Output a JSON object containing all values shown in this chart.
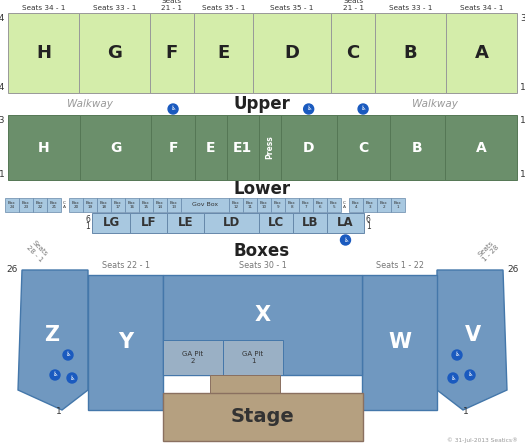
{
  "bg_color": "#ffffff",
  "upper_color": "#d4edaa",
  "lower_color": "#6b8f6b",
  "box_color": "#a8c8e0",
  "stage_color": "#b5a080",
  "floor_color": "#7098c0",
  "pit_color": "#9ab8d0",
  "wheelchair_color": "#1a5abf",
  "upper_sections": [
    "H",
    "G",
    "F",
    "E",
    "D",
    "C",
    "B",
    "A"
  ],
  "upper_seat_labels": [
    "Seats 34 - 1",
    "Seats 33 - 1",
    "Seats\n21 - 1",
    "Seats 35 - 1",
    "Seats 35 - 1",
    "Seats\n21 - 1",
    "Seats 33 - 1",
    "Seats 34 - 1"
  ],
  "upper_widths_rel": [
    1.38,
    1.38,
    0.85,
    1.15,
    1.52,
    0.85,
    1.38,
    1.38
  ],
  "lower_sections": [
    "H",
    "G",
    "F",
    "E",
    "E1",
    "Press",
    "D",
    "C",
    "B",
    "A"
  ],
  "lower_widths_rel": [
    1.35,
    1.35,
    0.82,
    0.6,
    0.6,
    0.42,
    1.05,
    1.0,
    1.05,
    1.35
  ],
  "lettered_boxes": [
    "LG",
    "LF",
    "LE",
    "LD",
    "LC",
    "LB",
    "LA"
  ],
  "lettered_box_widths": [
    38,
    37,
    37,
    55,
    34,
    34,
    37
  ],
  "small_boxes_left_outer": [
    "Box\n24",
    "Box\n23",
    "Box\n22",
    "Box\n21"
  ],
  "small_boxes_left_inner": [
    "Box\n20",
    "Box\n19",
    "Box\n18",
    "Box\n17",
    "Box\n16",
    "Box\n15",
    "Box\n14",
    "Box\n13"
  ],
  "small_boxes_right_inner": [
    "Box\n12",
    "Box\n11",
    "Box\n10",
    "Box\n9",
    "Box\n8",
    "Box\n7",
    "Box\n6",
    "Box\n5"
  ],
  "small_boxes_right_outer": [
    "Box\n4",
    "Box\n3",
    "Box\n2",
    "Box\n1"
  ],
  "dark_text": "#333333",
  "gray_text": "#999999"
}
